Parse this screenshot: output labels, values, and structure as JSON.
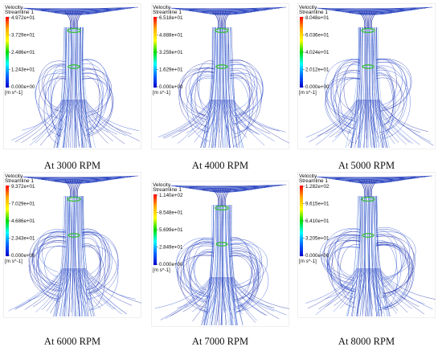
{
  "figure": {
    "panels": [
      {
        "caption": "At 3000 RPM",
        "legend": {
          "title": "Velocity",
          "subtitle": "Streamline 1",
          "ticks": [
            "4.972e+01",
            "3.729e+01",
            "2.486e+01",
            "1.243e+01",
            "0.000e+00"
          ],
          "unit": "[m s^-1]"
        }
      },
      {
        "caption": "At 4000 RPM",
        "legend": {
          "title": "Velocity",
          "subtitle": "Streamline 1",
          "ticks": [
            "6.518e+01",
            "4.888e+01",
            "3.259e+01",
            "1.629e+01",
            "0.000e+00"
          ],
          "unit": "[m s^-1]"
        }
      },
      {
        "caption": "At 5000 RPM",
        "legend": {
          "title": "Velocity",
          "subtitle": "Streamline 1",
          "ticks": [
            "8.048e+01",
            "6.036e+01",
            "4.024e+01",
            "2.012e+01",
            "0.000e+00"
          ],
          "unit": "[m s^-1]"
        }
      },
      {
        "caption": "At 6000 RPM",
        "legend": {
          "title": "Velocity",
          "subtitle": "Streamline 1",
          "ticks": [
            "9.372e+01",
            "7.029e+01",
            "4.686e+01",
            "2.343e+01",
            "0.000e+00"
          ],
          "unit": "[m s^-1]"
        }
      },
      {
        "caption": "At 7000 RPM",
        "legend": {
          "title": "Velocity",
          "subtitle": "Streamline 1",
          "ticks": [
            "1.140e+02",
            "8.548e+01",
            "5.699e+01",
            "2.849e+01",
            "0.000e+00"
          ],
          "unit": "[m s^-1]"
        }
      },
      {
        "caption": "At 8000 RPM",
        "legend": {
          "title": "Velocity",
          "subtitle": "Streamline 1",
          "ticks": [
            "1.282e+02",
            "9.615e+01",
            "6.410e+01",
            "3.205e+01",
            "0.000e+00"
          ],
          "unit": "[m s^-1]"
        }
      }
    ]
  },
  "colors": {
    "panel_bg": "#ffffff",
    "flow_dark": "#1f2fa8",
    "flow_mid": "#2f55d8",
    "flow_light": "#7aa7ee",
    "hub_green": "#3bbf3b",
    "colormap": [
      "#ff0000",
      "#ffaa00",
      "#ffff00",
      "#00dd00",
      "#00ffff",
      "#0066ff",
      "#0000cc"
    ]
  }
}
